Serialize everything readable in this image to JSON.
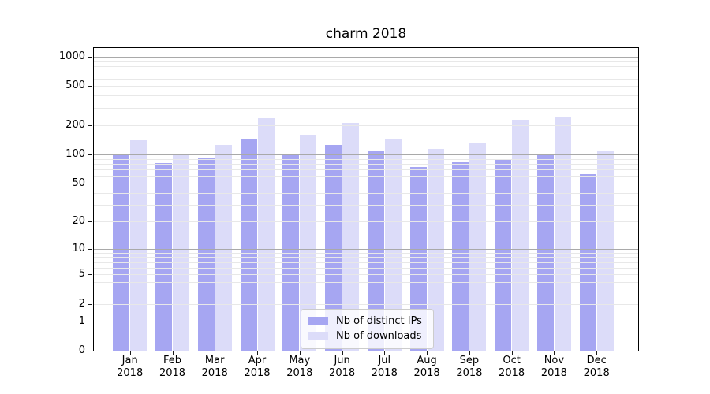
{
  "chart_data": {
    "type": "bar",
    "title": "charm 2018",
    "categories": [
      "Jan 2018",
      "Feb 2018",
      "Mar 2018",
      "Apr 2018",
      "May 2018",
      "Jun 2018",
      "Jul 2018",
      "Aug 2018",
      "Sep 2018",
      "Oct 2018",
      "Nov 2018",
      "Dec 2018"
    ],
    "series": [
      {
        "name": "Nb of distinct IPs",
        "color": "#a6a6f2",
        "values": [
          100,
          81,
          91,
          142,
          100,
          126,
          107,
          74,
          83,
          87,
          101,
          63
        ]
      },
      {
        "name": "Nb of downloads",
        "color": "#dcdcf9",
        "values": [
          140,
          100,
          126,
          234,
          159,
          210,
          143,
          113,
          133,
          225,
          239,
          110
        ]
      }
    ],
    "yscale": "log10(value+1)",
    "ylim": [
      0,
      1200
    ],
    "grid": true,
    "yticks": [
      {
        "value": 1000,
        "label": "1000"
      },
      {
        "value": 500,
        "label": "500"
      },
      {
        "value": 200,
        "label": "200"
      },
      {
        "value": 100,
        "label": "100"
      },
      {
        "value": 50,
        "label": "50"
      },
      {
        "value": 20,
        "label": "20"
      },
      {
        "value": 10,
        "label": "10"
      },
      {
        "value": 5,
        "label": "5"
      },
      {
        "value": 2,
        "label": "2"
      },
      {
        "value": 1,
        "label": "1"
      },
      {
        "value": 0,
        "label": "0"
      }
    ],
    "major_gridlines": [
      1,
      10,
      100,
      1000
    ],
    "minor_gridlines": [
      2,
      3,
      4,
      5,
      6,
      7,
      8,
      9,
      20,
      30,
      40,
      50,
      60,
      70,
      80,
      90,
      200,
      300,
      400,
      500,
      600,
      700,
      800,
      900
    ],
    "legend_position": "lower-center-inside"
  },
  "legend": {
    "items": [
      "Nb of distinct IPs",
      "Nb of downloads"
    ]
  },
  "colors": {
    "background": "#ffffff",
    "bar_distinct_ips": "#a6a6f2",
    "bar_downloads": "#dcdcf9",
    "grid_major": "#a9a9a9",
    "grid_minor": "#e8e8e8",
    "axis_line": "#000000",
    "tick_mark": "#1a1a1a",
    "legend_border": "#cccccc",
    "text": "#000000"
  }
}
